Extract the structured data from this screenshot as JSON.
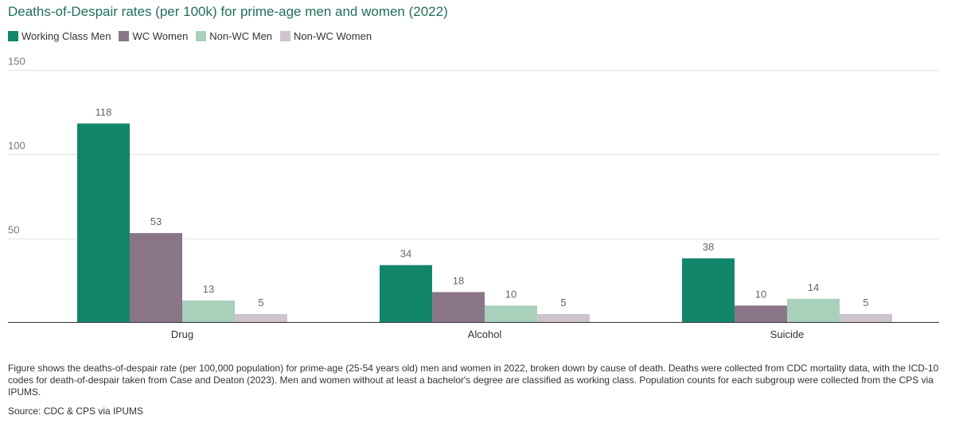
{
  "title": "Deaths-of-Despair rates (per 100k) for prime-age men and women (2022)",
  "footnote": "Figure shows the deaths-of-despair rate (per 100,000 population) for prime-age (25-54 years old) men and women in 2022, broken down by cause of death. Deaths were collected from CDC mortality data, with the ICD-10 codes for death-of-despair taken from Case and Deaton (2023). Men and women without at least a bachelor's degree are classified as working class. Population counts for each subgroup were collected from the CPS via IPUMS.",
  "source": "Source: CDC & CPS via IPUMS",
  "chart_data": {
    "type": "bar",
    "title": "Deaths-of-Despair rates (per 100k) for prime-age men and women (2022)",
    "xlabel": "",
    "ylabel": "",
    "categories": [
      "Drug",
      "Alcohol",
      "Suicide"
    ],
    "series": [
      {
        "name": "Working Class Men",
        "color": "#12866a",
        "values": [
          118,
          34,
          38
        ]
      },
      {
        "name": "WC Women",
        "color": "#8b7589",
        "values": [
          53,
          18,
          10
        ]
      },
      {
        "name": "Non-WC Men",
        "color": "#a9d0bb",
        "values": [
          13,
          10,
          14
        ]
      },
      {
        "name": "Non-WC Women",
        "color": "#cfc4cd",
        "values": [
          5,
          5,
          5
        ]
      }
    ],
    "ylim": [
      0,
      150
    ],
    "yticks": [
      50,
      100,
      150
    ],
    "grid": true,
    "legend_position": "top-left",
    "data_labels": true
  }
}
